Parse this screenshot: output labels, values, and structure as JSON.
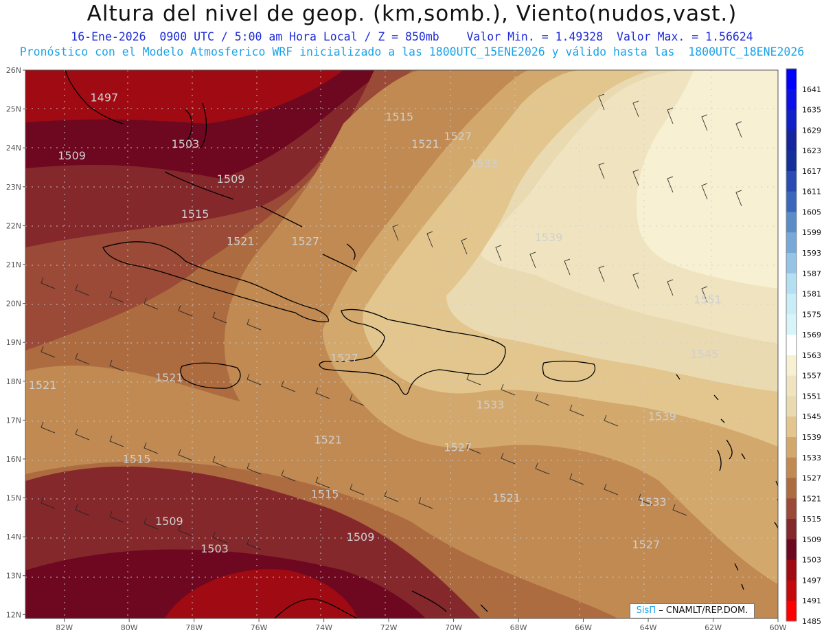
{
  "header": {
    "title": "Altura del nivel de geop. (km,somb.), Viento(nudos,vast.)",
    "subtitle1": "16-Ene-2026  0900 UTC / 5:00 am Hora Local / Z = 850mb    Valor Min. = 1.49328  Valor Max. = 1.56624",
    "subtitle2": "Pronóstico con el Modelo Atmosferico WRF inicializado a las 1800UTC_15ENE2026 y válido hasta las  1800UTC_18ENE2026"
  },
  "map": {
    "lat_labels": [
      "26N",
      "25N",
      "24N",
      "23N",
      "22N",
      "21N",
      "20N",
      "19N",
      "18N",
      "17N",
      "16N",
      "15N",
      "14N",
      "13N",
      "12N"
    ],
    "lon_labels": [
      "82W",
      "80W",
      "78W",
      "76W",
      "74W",
      "72W",
      "70W",
      "68W",
      "66W",
      "64W",
      "62W",
      "60W"
    ],
    "contour_labels": [
      {
        "text": "1497",
        "lon": -81.2,
        "lat": 25.2
      },
      {
        "text": "1503",
        "lon": -78.7,
        "lat": 24.0
      },
      {
        "text": "1509",
        "lon": -82.2,
        "lat": 23.7
      },
      {
        "text": "1509",
        "lon": -77.3,
        "lat": 23.1
      },
      {
        "text": "1515",
        "lon": -72.1,
        "lat": 24.7
      },
      {
        "text": "1521",
        "lon": -71.3,
        "lat": 24.0
      },
      {
        "text": "1527",
        "lon": -70.3,
        "lat": 24.2
      },
      {
        "text": "1533",
        "lon": -69.5,
        "lat": 23.5
      },
      {
        "text": "1515",
        "lon": -78.4,
        "lat": 22.2
      },
      {
        "text": "1521",
        "lon": -77.0,
        "lat": 21.5
      },
      {
        "text": "1527",
        "lon": -75.0,
        "lat": 21.5
      },
      {
        "text": "1539",
        "lon": -67.5,
        "lat": 21.6
      },
      {
        "text": "1551",
        "lon": -62.6,
        "lat": 20.0
      },
      {
        "text": "1545",
        "lon": -62.7,
        "lat": 18.6
      },
      {
        "text": "1527",
        "lon": -73.8,
        "lat": 18.5
      },
      {
        "text": "1521",
        "lon": -79.2,
        "lat": 18.0
      },
      {
        "text": "1521",
        "lon": -83.1,
        "lat": 17.8
      },
      {
        "text": "1533",
        "lon": -69.3,
        "lat": 17.3
      },
      {
        "text": "1539",
        "lon": -64.0,
        "lat": 17.0
      },
      {
        "text": "1521",
        "lon": -74.3,
        "lat": 16.4
      },
      {
        "text": "1527",
        "lon": -70.3,
        "lat": 16.2
      },
      {
        "text": "1515",
        "lon": -80.2,
        "lat": 15.9
      },
      {
        "text": "1515",
        "lon": -74.4,
        "lat": 15.0
      },
      {
        "text": "1521",
        "lon": -68.8,
        "lat": 14.9
      },
      {
        "text": "1533",
        "lon": -64.3,
        "lat": 14.8
      },
      {
        "text": "1509",
        "lon": -79.2,
        "lat": 14.3
      },
      {
        "text": "1509",
        "lon": -73.3,
        "lat": 13.9
      },
      {
        "text": "1527",
        "lon": -64.5,
        "lat": 13.7
      },
      {
        "text": "1503",
        "lon": -77.8,
        "lat": 13.6
      }
    ]
  },
  "colorbar": {
    "labels": [
      "1641",
      "1635",
      "1629",
      "1623",
      "1617",
      "1611",
      "1605",
      "1599",
      "1593",
      "1587",
      "1581",
      "1575",
      "1569",
      "1563",
      "1557",
      "1551",
      "1545",
      "1539",
      "1533",
      "1527",
      "1521",
      "1515",
      "1509",
      "1503",
      "1497",
      "1491",
      "1485"
    ],
    "colors": [
      "#0000ff",
      "#0a10e6",
      "#1020c8",
      "#14249c",
      "#142e9a",
      "#2a4cb2",
      "#3c66bc",
      "#5a8cc8",
      "#78a8d8",
      "#96c4e6",
      "#b4def2",
      "#c8ecf8",
      "#d6f4fa",
      "#ffffff",
      "#f7f0d2",
      "#f0e4c0",
      "#eadab2",
      "#e2c68e",
      "#d3a86c",
      "#c08a52",
      "#ad6b40",
      "#9a4a36",
      "#84282c",
      "#6e0820",
      "#a00a12",
      "#c4080c",
      "#ff0000"
    ]
  },
  "credit": {
    "brand": "SisΠ",
    "text": " – CNAMLT/REP.DOM."
  }
}
